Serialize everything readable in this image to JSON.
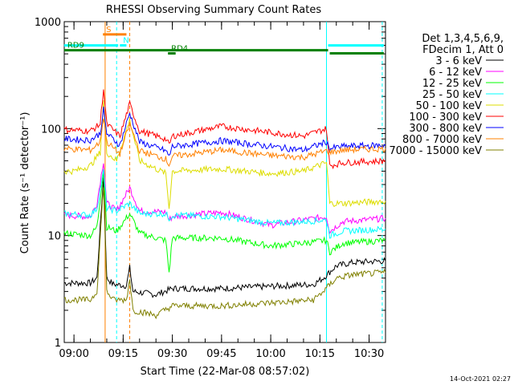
{
  "chart_data": {
    "type": "line",
    "title": "RHESSI Observing Summary Count Rates",
    "xlabel": "Start Time (22-Mar-08 08:57:02)",
    "ylabel": "Count Rate (s⁻¹ detector⁻¹)",
    "x_ticks": [
      "09:00",
      "09:15",
      "09:30",
      "09:45",
      "10:00",
      "10:15",
      "10:30"
    ],
    "y_ticks": [
      "1",
      "10",
      "100",
      "1000"
    ],
    "y_scale": "log",
    "ylim": [
      1,
      1000
    ],
    "xlim": [
      "08:57:02",
      "10:35:00"
    ],
    "legend_header": [
      "Det 1,3,4,5,6,9,",
      "FDecim 1, Att 0"
    ],
    "series": [
      {
        "name": "3 - 6 keV",
        "color": "#000000",
        "points": [
          [
            "08:57",
            3.6
          ],
          [
            "09:05",
            3.6
          ],
          [
            "09:07",
            4
          ],
          [
            "09:09",
            35
          ],
          [
            "09:10",
            4
          ],
          [
            "09:12",
            3.5
          ],
          [
            "09:16",
            3.4
          ],
          [
            "09:17",
            5
          ],
          [
            "09:18",
            3
          ],
          [
            "09:25",
            2.8
          ],
          [
            "09:30",
            3.2
          ],
          [
            "09:45",
            3.2
          ],
          [
            "09:55",
            3.3
          ],
          [
            "10:05",
            3.4
          ],
          [
            "10:13",
            3.5
          ],
          [
            "10:16",
            4
          ],
          [
            "10:20",
            5.2
          ],
          [
            "10:25",
            5.6
          ],
          [
            "10:35",
            5.8
          ]
        ]
      },
      {
        "name": "6 - 12 keV",
        "color": "#ff00ff",
        "points": [
          [
            "08:57",
            15.5
          ],
          [
            "09:05",
            15
          ],
          [
            "09:07",
            20
          ],
          [
            "09:09",
            50
          ],
          [
            "09:10",
            20
          ],
          [
            "09:13",
            17
          ],
          [
            "09:17",
            28
          ],
          [
            "09:20",
            17
          ],
          [
            "09:28",
            16.5
          ],
          [
            "09:29",
            14
          ],
          [
            "09:30",
            15
          ],
          [
            "09:45",
            16.5
          ],
          [
            "10:00",
            12.5
          ],
          [
            "10:10",
            14
          ],
          [
            "10:17",
            15
          ],
          [
            "10:18",
            11
          ],
          [
            "10:22",
            13.5
          ],
          [
            "10:35",
            14.5
          ]
        ]
      },
      {
        "name": "12 - 25 keV",
        "color": "#00ff00",
        "points": [
          [
            "08:57",
            10.5
          ],
          [
            "09:05",
            10
          ],
          [
            "09:07",
            12
          ],
          [
            "09:09",
            40
          ],
          [
            "09:10",
            12
          ],
          [
            "09:13",
            11
          ],
          [
            "09:17",
            16
          ],
          [
            "09:20",
            10.5
          ],
          [
            "09:28",
            9
          ],
          [
            "09:29",
            4.5
          ],
          [
            "09:30",
            9.5
          ],
          [
            "09:45",
            9.5
          ],
          [
            "10:00",
            8
          ],
          [
            "10:10",
            8.5
          ],
          [
            "10:17",
            9
          ],
          [
            "10:18",
            7
          ],
          [
            "10:22",
            8.5
          ],
          [
            "10:35",
            9
          ]
        ]
      },
      {
        "name": "25 - 50 keV",
        "color": "#00ffff",
        "points": [
          [
            "08:57",
            16
          ],
          [
            "09:05",
            15.5
          ],
          [
            "09:07",
            18
          ],
          [
            "09:09",
            40
          ],
          [
            "09:10",
            18
          ],
          [
            "09:13",
            17
          ],
          [
            "09:17",
            20
          ],
          [
            "09:20",
            16
          ],
          [
            "09:28",
            16
          ],
          [
            "09:29",
            14.5
          ],
          [
            "09:30",
            15.5
          ],
          [
            "09:45",
            15
          ],
          [
            "10:00",
            13
          ],
          [
            "10:10",
            13.5
          ],
          [
            "10:17",
            14
          ],
          [
            "10:18",
            10
          ],
          [
            "10:22",
            11
          ],
          [
            "10:35",
            11.5
          ]
        ]
      },
      {
        "name": "50 - 100 keV",
        "color": "#dddd00",
        "points": [
          [
            "08:57",
            40
          ],
          [
            "09:00",
            40
          ],
          [
            "09:05",
            45
          ],
          [
            "09:08",
            60
          ],
          [
            "09:09",
            180
          ],
          [
            "09:10",
            60
          ],
          [
            "09:13",
            50
          ],
          [
            "09:17",
            120
          ],
          [
            "09:20",
            50
          ],
          [
            "09:28",
            38
          ],
          [
            "09:29",
            18
          ],
          [
            "09:30",
            40
          ],
          [
            "09:45",
            42
          ],
          [
            "10:00",
            38
          ],
          [
            "10:10",
            40
          ],
          [
            "10:17",
            48
          ],
          [
            "10:18",
            20
          ],
          [
            "10:22",
            20
          ],
          [
            "10:35",
            21
          ]
        ]
      },
      {
        "name": "100 - 300 keV",
        "color": "#ff0000",
        "points": [
          [
            "08:57",
            98
          ],
          [
            "09:05",
            95
          ],
          [
            "09:08",
            110
          ],
          [
            "09:09",
            240
          ],
          [
            "09:10",
            110
          ],
          [
            "09:14",
            85
          ],
          [
            "09:17",
            170
          ],
          [
            "09:20",
            95
          ],
          [
            "09:28",
            80
          ],
          [
            "09:29",
            70
          ],
          [
            "09:30",
            85
          ],
          [
            "09:45",
            105
          ],
          [
            "10:00",
            92
          ],
          [
            "10:10",
            85
          ],
          [
            "10:17",
            100
          ],
          [
            "10:18",
            45
          ],
          [
            "10:22",
            48
          ],
          [
            "10:35",
            50
          ]
        ]
      },
      {
        "name": "300 - 800 keV",
        "color": "#0000ff",
        "points": [
          [
            "08:57",
            80
          ],
          [
            "09:05",
            78
          ],
          [
            "09:08",
            90
          ],
          [
            "09:09",
            150
          ],
          [
            "09:10",
            90
          ],
          [
            "09:14",
            70
          ],
          [
            "09:17",
            140
          ],
          [
            "09:20",
            75
          ],
          [
            "09:28",
            62
          ],
          [
            "09:29",
            55
          ],
          [
            "09:30",
            68
          ],
          [
            "09:45",
            77
          ],
          [
            "10:00",
            68
          ],
          [
            "10:10",
            63
          ],
          [
            "10:17",
            75
          ],
          [
            "10:18",
            65
          ],
          [
            "10:22",
            68
          ],
          [
            "10:35",
            70
          ]
        ]
      },
      {
        "name": "800 - 7000 keV",
        "color": "#ff8000",
        "points": [
          [
            "08:57",
            65
          ],
          [
            "09:05",
            63
          ],
          [
            "09:08",
            75
          ],
          [
            "09:09",
            130
          ],
          [
            "09:10",
            75
          ],
          [
            "09:14",
            58
          ],
          [
            "09:17",
            110
          ],
          [
            "09:20",
            62
          ],
          [
            "09:28",
            52
          ],
          [
            "09:29",
            46
          ],
          [
            "09:30",
            55
          ],
          [
            "09:45",
            63
          ],
          [
            "10:00",
            56
          ],
          [
            "10:10",
            54
          ],
          [
            "10:17",
            62
          ],
          [
            "10:18",
            60
          ],
          [
            "10:22",
            63
          ],
          [
            "10:35",
            65
          ]
        ]
      },
      {
        "name": "7000 - 15000 keV",
        "color": "#808000",
        "points": [
          [
            "08:57",
            2.5
          ],
          [
            "09:05",
            2.5
          ],
          [
            "09:07",
            3
          ],
          [
            "09:09",
            30
          ],
          [
            "09:10",
            3
          ],
          [
            "09:12",
            2.5
          ],
          [
            "09:16",
            2.5
          ],
          [
            "09:17",
            4
          ],
          [
            "09:18",
            2
          ],
          [
            "09:25",
            1.8
          ],
          [
            "09:30",
            2.2
          ],
          [
            "09:45",
            2.2
          ],
          [
            "09:55",
            2.3
          ],
          [
            "10:05",
            2.4
          ],
          [
            "10:13",
            2.5
          ],
          [
            "10:16",
            3
          ],
          [
            "10:20",
            4
          ],
          [
            "10:25",
            4.3
          ],
          [
            "10:35",
            4.5
          ]
        ]
      }
    ],
    "flags": [
      {
        "label": "S",
        "color": "#ff8000",
        "start": "09:08:50",
        "end": "09:16:00",
        "level": 760
      },
      {
        "label": "N",
        "color": "#00ffff",
        "start": "09:14:00",
        "end": "09:16:00",
        "level": 600
      },
      {
        "label": "",
        "color": "#00ffff",
        "start": "08:57:00",
        "end": "09:13:30",
        "level": 600
      },
      {
        "label": "RD9",
        "color": "#008000",
        "start": "08:57:00",
        "end": "10:17:30",
        "level": 540
      },
      {
        "label": "RD4",
        "color": "#008000",
        "start": "09:28:40",
        "end": "09:31:00",
        "level": 505
      },
      {
        "label": "",
        "color": "#008000",
        "start": "10:18:00",
        "end": "10:34:30",
        "level": 505
      },
      {
        "label": "",
        "color": "#00ffff",
        "start": "10:17:30",
        "end": "10:34:30",
        "level": 600
      }
    ],
    "vertical_markers": [
      {
        "time": "09:13:00",
        "color": "#00ffff",
        "dashed": true
      },
      {
        "time": "09:17:00",
        "color": "#ff8000",
        "dashed": true
      },
      {
        "time": "09:09:30",
        "color": "#ff8000",
        "dashed": false
      },
      {
        "time": "10:17:00",
        "color": "#00ffff",
        "dashed": false
      },
      {
        "time": "10:34:00",
        "color": "#00ffff",
        "dashed": true
      }
    ],
    "footer_date": "14-Oct-2021 02:27"
  }
}
